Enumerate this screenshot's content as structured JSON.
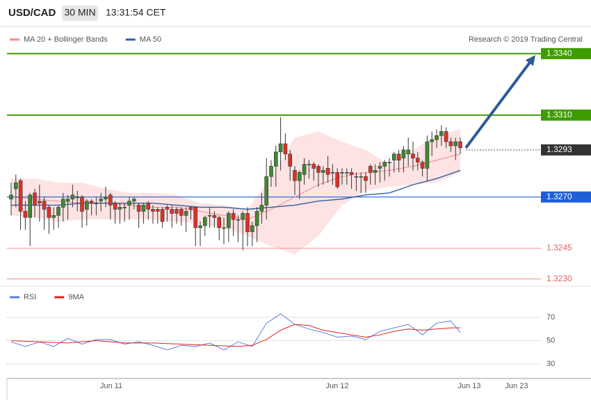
{
  "chart_data": [
    {
      "type": "candlestick",
      "title": "USD/CAD",
      "subtitle": "30 MIN",
      "time": "13:31:54 CET",
      "credit": "Research © 2019 Trading Central",
      "up_color": "#3d8b2f",
      "down_color": "#e0302a",
      "open": [
        1.3269,
        1.3274,
        1.3278,
        1.3263,
        1.326,
        1.3272,
        1.3268,
        1.3268,
        1.3265,
        1.326,
        1.3261,
        1.3265,
        1.3268,
        1.3269,
        1.327,
        1.327,
        1.3264,
        1.3268,
        1.3267,
        1.3268,
        1.3269,
        1.3271,
        1.3267,
        1.3264,
        1.3265,
        1.3266,
        1.3268,
        1.3266,
        1.3263,
        1.3267,
        1.3264,
        1.3264,
        1.3264,
        1.3265,
        1.3264,
        1.3264,
        1.3264,
        1.3261,
        1.3265,
        1.3265,
        1.3255,
        1.3256,
        1.3261,
        1.3261,
        1.326,
        1.3255,
        1.3255,
        1.3262,
        1.3259,
        1.3259,
        1.3262,
        1.3253,
        1.3256,
        1.3263,
        1.3266,
        1.328,
        1.3285,
        1.3292,
        1.3296,
        1.3291,
        1.3283,
        1.3278,
        1.3281,
        1.3286,
        1.3286,
        1.3285,
        1.3282,
        1.3284,
        1.3282,
        1.3282,
        1.3282,
        1.3282,
        1.3282,
        1.328,
        1.328,
        1.328,
        1.3285,
        1.3282,
        1.3284,
        1.3285,
        1.3287,
        1.3288,
        1.3291,
        1.3289,
        1.3291,
        1.3291,
        1.3289,
        1.3287,
        1.3284,
        1.3297,
        1.3298,
        1.33,
        1.3302,
        1.3297,
        1.3295,
        1.3297
      ],
      "high": [
        1.3277,
        1.3281,
        1.3279,
        1.3268,
        1.3272,
        1.3274,
        1.3276,
        1.327,
        1.3266,
        1.3265,
        1.3266,
        1.3272,
        1.3271,
        1.3276,
        1.3273,
        1.3271,
        1.3269,
        1.3269,
        1.327,
        1.3272,
        1.3275,
        1.3272,
        1.3268,
        1.3267,
        1.3267,
        1.327,
        1.327,
        1.3267,
        1.3267,
        1.3268,
        1.3266,
        1.3265,
        1.3265,
        1.3266,
        1.3266,
        1.3265,
        1.3265,
        1.3265,
        1.3265,
        1.3265,
        1.3258,
        1.3261,
        1.3265,
        1.3263,
        1.3261,
        1.326,
        1.3263,
        1.3264,
        1.3261,
        1.3263,
        1.3265,
        1.3258,
        1.3265,
        1.3272,
        1.3289,
        1.3288,
        1.3295,
        1.3309,
        1.3301,
        1.3293,
        1.3285,
        1.3283,
        1.3289,
        1.3288,
        1.3287,
        1.3286,
        1.3285,
        1.329,
        1.3286,
        1.3284,
        1.3284,
        1.3284,
        1.3284,
        1.3282,
        1.3282,
        1.3282,
        1.3286,
        1.3286,
        1.3287,
        1.3288,
        1.3289,
        1.3292,
        1.3293,
        1.3295,
        1.3299,
        1.3297,
        1.3292,
        1.3288,
        1.33,
        1.3302,
        1.3303,
        1.3305,
        1.3304,
        1.3299,
        1.3299,
        1.3299
      ],
      "low": [
        1.3261,
        1.3265,
        1.3254,
        1.3254,
        1.3246,
        1.326,
        1.3258,
        1.3254,
        1.3252,
        1.3254,
        1.3255,
        1.3258,
        1.3259,
        1.3265,
        1.3263,
        1.3255,
        1.3256,
        1.3261,
        1.3261,
        1.3263,
        1.3265,
        1.3259,
        1.3257,
        1.3257,
        1.3258,
        1.3259,
        1.3264,
        1.3255,
        1.3257,
        1.3259,
        1.3257,
        1.3257,
        1.3255,
        1.3258,
        1.3255,
        1.3257,
        1.3256,
        1.3253,
        1.3259,
        1.3246,
        1.3246,
        1.3251,
        1.3255,
        1.3255,
        1.3249,
        1.3247,
        1.3248,
        1.3251,
        1.3248,
        1.3244,
        1.3246,
        1.3246,
        1.3248,
        1.3257,
        1.3259,
        1.3275,
        1.3275,
        1.3283,
        1.3288,
        1.3278,
        1.3271,
        1.3269,
        1.3276,
        1.3279,
        1.3278,
        1.3275,
        1.3276,
        1.3277,
        1.3276,
        1.3274,
        1.3276,
        1.3276,
        1.3274,
        1.3273,
        1.3272,
        1.3272,
        1.3276,
        1.3276,
        1.3277,
        1.3278,
        1.328,
        1.3282,
        1.3282,
        1.3282,
        1.3285,
        1.3283,
        1.3283,
        1.328,
        1.3278,
        1.329,
        1.3294,
        1.3295,
        1.3294,
        1.3292,
        1.3288,
        1.3291
      ],
      "close": [
        1.3271,
        1.3277,
        1.3263,
        1.326,
        1.3271,
        1.3266,
        1.3267,
        1.3264,
        1.326,
        1.3261,
        1.3265,
        1.3269,
        1.3269,
        1.3271,
        1.327,
        1.3263,
        1.3268,
        1.3267,
        1.3267,
        1.3269,
        1.327,
        1.3266,
        1.3264,
        1.3265,
        1.3265,
        1.3268,
        1.3269,
        1.3263,
        1.3266,
        1.3264,
        1.3263,
        1.3263,
        1.3258,
        1.3264,
        1.3262,
        1.3262,
        1.3261,
        1.3263,
        1.3264,
        1.3255,
        1.3256,
        1.326,
        1.3261,
        1.326,
        1.3255,
        1.3255,
        1.3262,
        1.3259,
        1.3259,
        1.3262,
        1.3253,
        1.3256,
        1.3263,
        1.3266,
        1.328,
        1.3285,
        1.3292,
        1.3296,
        1.3291,
        1.3285,
        1.3278,
        1.3282,
        1.3286,
        1.3286,
        1.3284,
        1.3282,
        1.3283,
        1.3281,
        1.3282,
        1.3275,
        1.3282,
        1.3282,
        1.3281,
        1.328,
        1.328,
        1.3278,
        1.3282,
        1.3283,
        1.3285,
        1.3287,
        1.3287,
        1.3291,
        1.3288,
        1.3293,
        1.3293,
        1.3289,
        1.3287,
        1.3284,
        1.3297,
        1.3298,
        1.33,
        1.3302,
        1.3297,
        1.3295,
        1.3297,
        1.3294
      ],
      "series": [
        {
          "name": "MA 20 + Bollinger Bands",
          "color": "#f08a8a",
          "band_color": "#fde3e3",
          "x": [
            0,
            5,
            10,
            15,
            20,
            25,
            30,
            35,
            40,
            45,
            50,
            55,
            60,
            65,
            70,
            75,
            80,
            85,
            90,
            95
          ],
          "values": [
            1.327,
            1.3269,
            1.3268,
            1.3267,
            1.3267,
            1.3266,
            1.3265,
            1.3265,
            1.3263,
            1.3261,
            1.3259,
            1.3264,
            1.327,
            1.3276,
            1.328,
            1.3282,
            1.3283,
            1.3285,
            1.3288,
            1.3291
          ],
          "upper": [
            1.3279,
            1.3279,
            1.3277,
            1.3277,
            1.3274,
            1.3272,
            1.3272,
            1.3271,
            1.3267,
            1.3266,
            1.3264,
            1.328,
            1.3299,
            1.3302,
            1.3297,
            1.3293,
            1.3286,
            1.3293,
            1.33,
            1.3303
          ],
          "lower": [
            1.3261,
            1.326,
            1.3258,
            1.3259,
            1.3259,
            1.3259,
            1.3259,
            1.3258,
            1.3257,
            1.3255,
            1.3251,
            1.3246,
            1.3242,
            1.3251,
            1.3266,
            1.3273,
            1.3275,
            1.3276,
            1.3277,
            1.3282
          ]
        },
        {
          "name": "MA 50",
          "color": "#2f5d9c",
          "x": [
            0,
            5,
            10,
            15,
            20,
            25,
            30,
            35,
            40,
            45,
            50,
            55,
            60,
            65,
            70,
            75,
            80,
            85,
            90,
            95
          ],
          "values": [
            1.3266,
            1.3266,
            1.3266,
            1.3267,
            1.3267,
            1.3267,
            1.3267,
            1.3266,
            1.3265,
            1.3265,
            1.3264,
            1.3265,
            1.3266,
            1.3268,
            1.3269,
            1.3271,
            1.3272,
            1.3276,
            1.3279,
            1.3283
          ]
        }
      ],
      "levels": [
        {
          "value": 1.334,
          "label": "1.3340",
          "color": "#3f9c00",
          "box": true,
          "style": "solid"
        },
        {
          "value": 1.331,
          "label": "1.3310",
          "color": "#3f9c00",
          "box": true,
          "style": "solid"
        },
        {
          "value": 1.3293,
          "label": "1.3293",
          "color": "#333333",
          "box": true,
          "style": "dotted"
        },
        {
          "value": 1.327,
          "label": "1.3270",
          "color": "#1f5fd6",
          "box": true,
          "style": "solid"
        },
        {
          "value": 1.3245,
          "label": "1.3245",
          "color": "#f2a0a0",
          "box": false,
          "style": "solid"
        },
        {
          "value": 1.323,
          "label": "1.3230",
          "color": "#f2a0a0",
          "box": false,
          "style": "solid"
        }
      ],
      "arrow_color": "#2d5a99",
      "ylim": [
        1.3227,
        1.3345
      ],
      "x_labels": [
        "Jun 11",
        "Jun 12",
        "Jun 13",
        "Jun 23"
      ]
    },
    {
      "type": "line",
      "series": [
        {
          "name": "RSI",
          "color": "#5b80d8",
          "x": [
            0,
            3,
            6,
            9,
            12,
            15,
            18,
            21,
            24,
            27,
            30,
            33,
            36,
            39,
            42,
            45,
            48,
            51,
            54,
            57,
            60,
            63,
            66,
            69,
            72,
            75,
            78,
            81,
            84,
            87,
            90,
            93,
            95
          ],
          "values": [
            49,
            45,
            49,
            45,
            52,
            47,
            51,
            51,
            47,
            49,
            46,
            42,
            46,
            45,
            48,
            42,
            49,
            45,
            65,
            73,
            64,
            60,
            57,
            53,
            54,
            51,
            58,
            61,
            64,
            55,
            65,
            67,
            57
          ]
        },
        {
          "name": "9MA",
          "color": "#e02020",
          "x": [
            0,
            6,
            12,
            18,
            24,
            30,
            36,
            42,
            48,
            51,
            54,
            57,
            60,
            63,
            66,
            69,
            72,
            75,
            78,
            81,
            84,
            87,
            90,
            93,
            95
          ],
          "values": [
            50,
            49,
            48,
            50,
            48,
            48,
            47,
            46,
            45,
            46,
            51,
            59,
            64,
            63,
            59,
            57,
            55,
            53,
            55,
            58,
            60,
            59,
            60,
            61,
            61
          ]
        }
      ],
      "ylim": [
        17.5,
        96.6
      ],
      "yticks": [
        30,
        50,
        70
      ]
    }
  ]
}
